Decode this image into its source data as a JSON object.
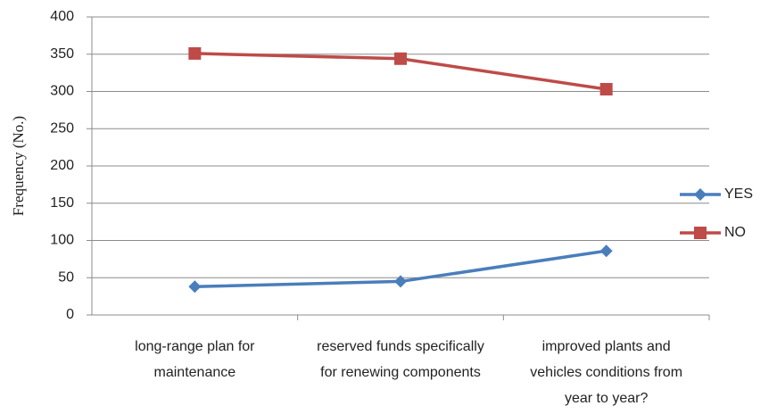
{
  "chart_data": {
    "type": "line",
    "y_label": "Frequency (No.)",
    "categories": [
      "long-range plan for maintenance",
      "reserved funds specifically for renewing components",
      "improved plants and vehicles conditions from year to year?"
    ],
    "series": [
      {
        "name": "YES",
        "color": "#4a7ebb",
        "marker": "diamond",
        "values": [
          38,
          45,
          86
        ]
      },
      {
        "name": "NO",
        "color": "#be4b48",
        "marker": "square",
        "values": [
          351,
          344,
          303
        ]
      }
    ],
    "ylim": [
      0,
      400
    ],
    "yticks": [
      0,
      50,
      100,
      150,
      200,
      250,
      300,
      350,
      400
    ],
    "grid": true,
    "legend": "right"
  }
}
